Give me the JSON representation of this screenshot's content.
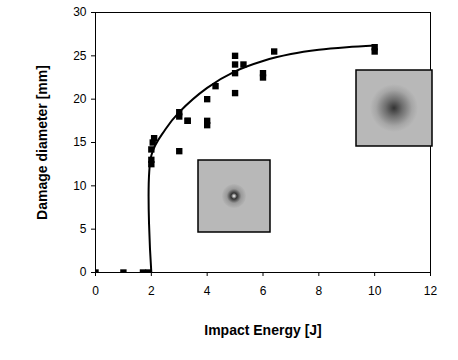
{
  "chart_data": {
    "type": "scatter",
    "xlabel": "Impact Energy [J]",
    "ylabel": "Damage diameter [mm]",
    "xlim": [
      0,
      12
    ],
    "xticks": [
      0,
      2,
      4,
      6,
      8,
      10,
      12
    ],
    "ylim": [
      0,
      30
    ],
    "yticks": [
      0,
      5,
      10,
      15,
      20,
      25,
      30
    ],
    "grid": false,
    "series": [
      {
        "type": "scatter",
        "marker": "square",
        "color": "#000000",
        "x": [
          0,
          1,
          1.7,
          1.9,
          2,
          2,
          2,
          2.05,
          2.1,
          3,
          3,
          3,
          3.3,
          3.3,
          4,
          4,
          4,
          4.3,
          5,
          5,
          5,
          5,
          5.3,
          6,
          6,
          6.4,
          10,
          10
        ],
        "values": [
          0,
          0,
          0,
          0,
          12.5,
          13,
          14.2,
          15,
          15.5,
          18.5,
          14,
          18,
          17.5,
          17.5,
          20,
          17,
          17.5,
          21.5,
          25,
          24,
          20.7,
          23,
          24,
          23,
          22.5,
          25.5,
          25.5,
          26
        ]
      },
      {
        "type": "line",
        "line_style": "solid",
        "color": "#000000",
        "x": [
          2,
          2,
          2.5,
          3,
          4,
          5,
          6,
          7,
          8,
          9,
          10
        ],
        "values": [
          0,
          13.5,
          16.5,
          18.5,
          21.3,
          23.2,
          24.4,
          25.2,
          25.7,
          26,
          26.2
        ]
      }
    ]
  }
}
